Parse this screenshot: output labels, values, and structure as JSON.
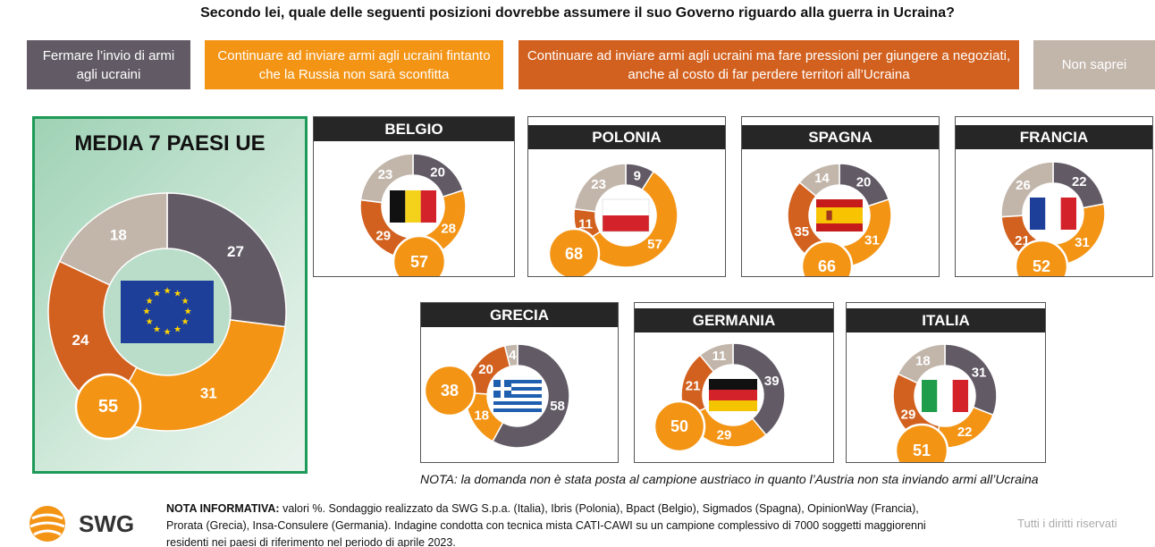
{
  "title": "Secondo lei, quale delle seguenti posizioni dovrebbe assumere il suo Governo riguardo alla guerra in Ucraina?",
  "legend": [
    "Fermare l’invio di armi agli ucraini",
    "Continuare ad inviare armi agli ucraini fintanto che la Russia non sarà sconfitta",
    "Continuare ad inviare armi agli ucraini ma fare pressioni per giungere a negoziati, anche al costo di far perdere territori all’Ucraina",
    "Non saprei"
  ],
  "colors": {
    "stop": "#625b66",
    "continue": "#f39415",
    "negotiate": "#d2611f",
    "unsure": "#c2b6ab",
    "green": "#1d9a57"
  },
  "chart_data": {
    "type": "donut",
    "series_order": [
      "stop",
      "continue",
      "negotiate",
      "unsure"
    ],
    "charts": [
      {
        "name": "MEDIA 7 PAESI UE",
        "flag": "eu",
        "values": [
          27,
          31,
          24,
          18
        ],
        "total_continue": 55
      },
      {
        "name": "BELGIO",
        "flag": "be",
        "values": [
          20,
          28,
          29,
          23
        ],
        "total_continue": 57
      },
      {
        "name": "POLONIA",
        "flag": "pl",
        "values": [
          9,
          57,
          11,
          23
        ],
        "total_continue": 68
      },
      {
        "name": "SPAGNA",
        "flag": "es",
        "values": [
          20,
          31,
          35,
          14
        ],
        "total_continue": 66
      },
      {
        "name": "FRANCIA",
        "flag": "fr",
        "values": [
          22,
          31,
          21,
          26
        ],
        "total_continue": 52
      },
      {
        "name": "GRECIA",
        "flag": "gr",
        "values": [
          58,
          18,
          20,
          4
        ],
        "total_continue": 38
      },
      {
        "name": "GERMANIA",
        "flag": "de",
        "values": [
          39,
          29,
          21,
          11
        ],
        "total_continue": 50
      },
      {
        "name": "ITALIA",
        "flag": "it",
        "values": [
          31,
          22,
          29,
          18
        ],
        "total_continue": 51
      }
    ]
  },
  "note": "NOTA: la domanda non è stata posta al campione austriaco in quanto l’Austria non sta inviando armi all’Ucraina",
  "info_label": "NOTA INFORMATIVA:",
  "info_text": " valori %. Sondaggio realizzato da SWG S.p.a. (Italia), Ibris (Polonia), Bpact (Belgio), Sigmados (Spagna), OpinionWay (Francia), Prorata (Grecia), Insa-Consulere (Germania). Indagine condotta con tecnica mista CATI-CAWI su un campione complessivo di 7000 soggetti maggiorenni residenti nei paesi di riferimento nel periodo di aprile 2023.",
  "logo_text": "SWG",
  "rights": "Tutti i diritti riservati"
}
